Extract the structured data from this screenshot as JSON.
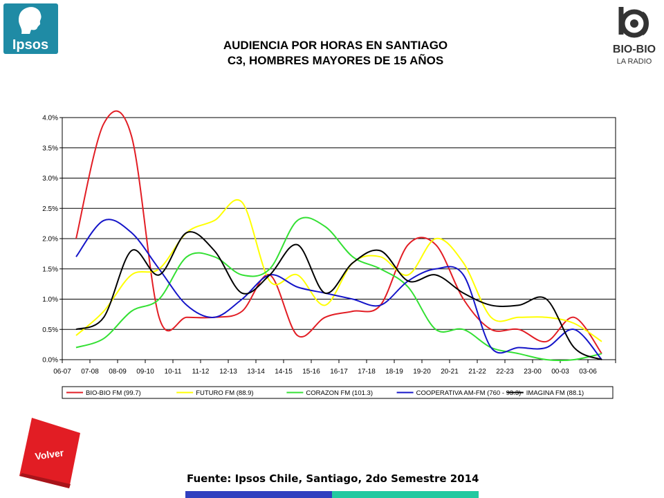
{
  "header": {
    "title_line1": "AUDIENCIA POR HORAS EN SANTIAGO",
    "title_line2": "C3, HOMBRES MAYORES DE 15 AÑOS"
  },
  "logos": {
    "ipsos": "Ipsos",
    "biobio": "BIO-BIO",
    "biobio_sub": "LA RADIO"
  },
  "nav": {
    "volver_label": "Volver"
  },
  "footer": {
    "source": "Fuente: Ipsos Chile, Santiago, 2do Semestre 2014"
  },
  "colors": {
    "accent_blue": "#2f3fbf",
    "accent_teal": "#22c9a0",
    "volver_red": "#e21d24",
    "ipsos_bg": "#1f8ba5"
  },
  "chart_data": {
    "type": "line",
    "title": "",
    "xlabel": "",
    "ylabel": "",
    "ylim": [
      0,
      0.04
    ],
    "yticks": [
      "0.0%",
      "0.5%",
      "1.0%",
      "1.5%",
      "2.0%",
      "2.5%",
      "3.0%",
      "3.5%",
      "4.0%"
    ],
    "grid": true,
    "legend_position": "bottom",
    "categories": [
      "06-07",
      "07-08",
      "08-09",
      "09-10",
      "10-11",
      "11-12",
      "12-13",
      "13-14",
      "14-15",
      "15-16",
      "16-17",
      "17-18",
      "18-19",
      "19-20",
      "20-21",
      "21-22",
      "22-23",
      "23-00",
      "00-03",
      "03-06"
    ],
    "series": [
      {
        "name": "BIO-BIO FM (99.7)",
        "color": "#e21d24",
        "values": [
          0.02,
          0.039,
          0.037,
          0.007,
          0.007,
          0.007,
          0.008,
          0.014,
          0.004,
          0.007,
          0.008,
          0.009,
          0.019,
          0.019,
          0.01,
          0.005,
          0.005,
          0.003,
          0.007,
          0.001
        ]
      },
      {
        "name": "FUTURO FM (88.9)",
        "color": "#ffff00",
        "values": [
          0.004,
          0.008,
          0.014,
          0.015,
          0.021,
          0.023,
          0.026,
          0.013,
          0.014,
          0.009,
          0.016,
          0.017,
          0.014,
          0.02,
          0.016,
          0.007,
          0.007,
          0.007,
          0.006,
          0.003
        ]
      },
      {
        "name": "CORAZON FM (101.3)",
        "color": "#33e033",
        "values": [
          0.002,
          0.0035,
          0.008,
          0.01,
          0.017,
          0.017,
          0.014,
          0.015,
          0.023,
          0.022,
          0.017,
          0.015,
          0.012,
          0.005,
          0.005,
          0.002,
          0.001,
          0.0,
          0.0,
          0.001
        ]
      },
      {
        "name": "COOPERATIVA AM-FM (760 - 93.3)",
        "color": "#1414c8",
        "values": [
          0.017,
          0.023,
          0.021,
          0.015,
          0.009,
          0.007,
          0.01,
          0.014,
          0.012,
          0.011,
          0.01,
          0.009,
          0.013,
          0.015,
          0.014,
          0.002,
          0.002,
          0.002,
          0.005,
          0.0
        ]
      },
      {
        "name": "IMAGINA FM (88.1)",
        "color": "#000000",
        "values": [
          0.005,
          0.007,
          0.018,
          0.014,
          0.021,
          0.018,
          0.011,
          0.014,
          0.019,
          0.011,
          0.016,
          0.018,
          0.013,
          0.014,
          0.011,
          0.009,
          0.009,
          0.01,
          0.002,
          0.0
        ]
      }
    ]
  }
}
